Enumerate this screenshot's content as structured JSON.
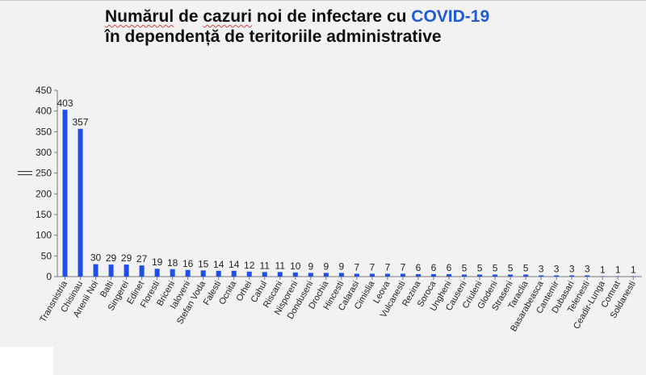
{
  "title": {
    "part1": "Numărul",
    "part2": " de ",
    "part3": "cazuri",
    "part4": " noi de infectare cu ",
    "part5": "COVID-19",
    "line2": "în dependență de teritoriile administrative"
  },
  "colors": {
    "bar": "#1f4fe8",
    "title_accent": "#1f5bd6",
    "background": "#f2f2f2"
  },
  "chart_data": {
    "type": "bar",
    "categories": [
      "Transnistria",
      "Chisinau",
      "Anenii Noi",
      "Balti",
      "Singerei",
      "Edinet",
      "Floresti",
      "Briceni",
      "Ialoveni",
      "Stefan Voda",
      "Falesti",
      "Ocnita",
      "Orhei",
      "Cahul",
      "Riscani",
      "Nisporeni",
      "Donduseni",
      "Drochia",
      "Hincesti",
      "Calarasi",
      "Cimislia",
      "Leova",
      "Vulcanesti",
      "Rezina",
      "Soroca",
      "Ungheni",
      "Causeni",
      "Criuleni",
      "Glodeni",
      "Straseni",
      "Taraclia",
      "Basarabeasca",
      "Cantemir",
      "Dubasari",
      "Telenesti",
      "Ceadir-Lunga",
      "Comrat",
      "Soldanesti"
    ],
    "values": [
      403,
      357,
      30,
      29,
      29,
      27,
      19,
      18,
      16,
      15,
      14,
      14,
      12,
      11,
      11,
      10,
      9,
      9,
      9,
      7,
      7,
      7,
      7,
      6,
      6,
      6,
      5,
      5,
      5,
      5,
      5,
      3,
      3,
      3,
      3,
      1,
      1,
      1
    ],
    "yticks": [
      "0",
      "50",
      "100",
      "150",
      "200",
      "250",
      "300",
      "350",
      "400",
      "450"
    ],
    "ylim": [
      0,
      450
    ],
    "axis_break_at": 250,
    "grid": false,
    "legend": false,
    "data_labels": true
  }
}
